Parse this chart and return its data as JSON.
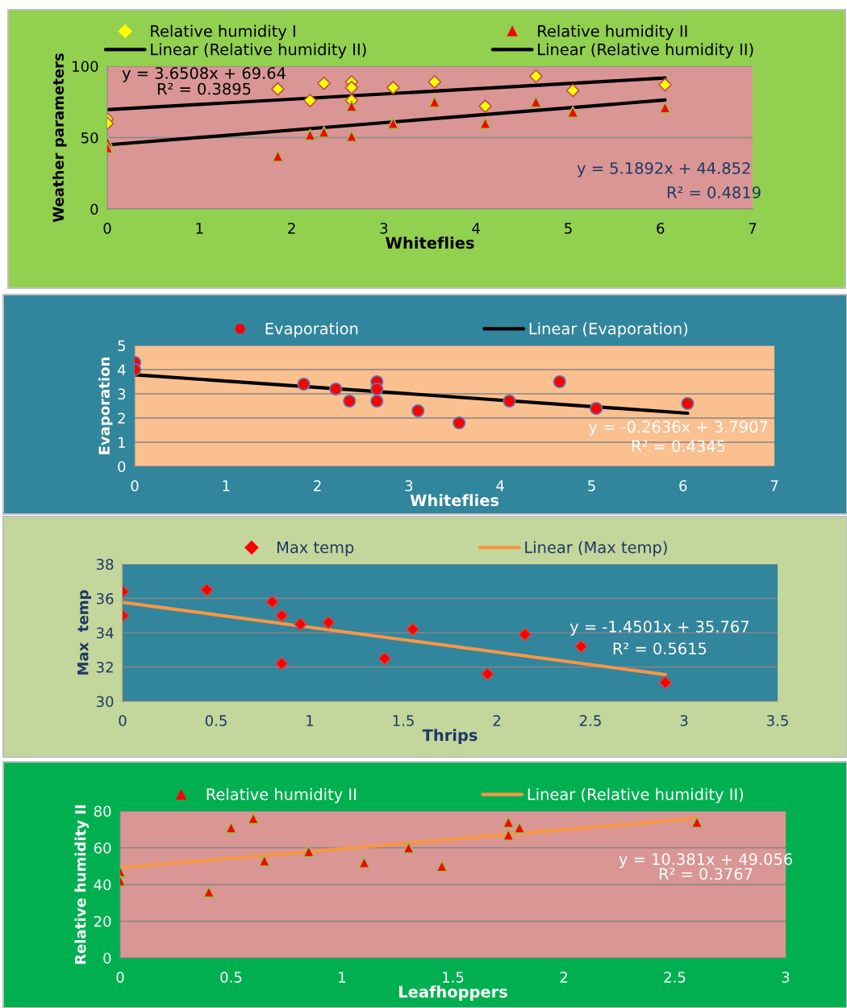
{
  "chart_data": [
    {
      "type": "scatter",
      "xlabel": "Whiteflies",
      "ylabel": "Weather parameters",
      "xlim": [
        0,
        7
      ],
      "xticks": [
        0,
        1,
        2,
        3,
        4,
        5,
        6,
        7
      ],
      "ylim": [
        0,
        100
      ],
      "yticks": [
        0,
        50,
        100
      ],
      "grid": "y",
      "legend": "top",
      "annotations": [
        "y = 3.6508x + 69.64",
        "R² = 0.3895",
        "y = 5.1892x + 44.852",
        "R² = 0.4819"
      ],
      "series": [
        {
          "name": "Relative humidity I",
          "marker": "diamond",
          "color": "#ffff00",
          "x": [
            0,
            0,
            1.85,
            2.2,
            2.35,
            2.65,
            2.65,
            2.65,
            3.1,
            3.55,
            4.1,
            4.65,
            5.05,
            6.05
          ],
          "values": [
            63,
            60,
            84,
            76,
            88,
            89,
            85,
            76,
            85,
            89,
            72,
            93,
            83,
            87
          ]
        },
        {
          "name": "Linear (Relative humidity II)",
          "type": "line",
          "marker": "none",
          "color": "#000000",
          "x": [
            0,
            6.05
          ],
          "values": [
            69.6,
            91.7
          ]
        },
        {
          "name": "Relative humidity II",
          "marker": "triangle",
          "color": "#ff0000",
          "x": [
            0,
            0,
            1.85,
            2.2,
            2.35,
            2.65,
            2.65,
            3.1,
            3.55,
            4.1,
            4.65,
            5.05,
            6.05
          ],
          "values": [
            47,
            43,
            37,
            52,
            54,
            72,
            51,
            60,
            75,
            60,
            75,
            68,
            71
          ]
        },
        {
          "name": "Linear (Relative humidity II)",
          "type": "line",
          "marker": "none",
          "color": "#000000",
          "x": [
            0,
            6.05
          ],
          "values": [
            44.9,
            76.3
          ]
        }
      ]
    },
    {
      "type": "scatter",
      "xlabel": "Whiteflies",
      "ylabel": "Evaporation",
      "xlim": [
        0,
        7
      ],
      "xticks": [
        0,
        1,
        2,
        3,
        4,
        5,
        6,
        7
      ],
      "ylim": [
        0,
        5
      ],
      "yticks": [
        0,
        1,
        2,
        3,
        4,
        5
      ],
      "grid": "y",
      "legend": "top",
      "annotations": [
        "y = -0.2636x + 3.7907",
        "R² = 0.4345"
      ],
      "series": [
        {
          "name": "Evaporation",
          "marker": "circle",
          "color": "#ff0000",
          "x": [
            0,
            0,
            1.85,
            2.2,
            2.35,
            2.65,
            2.65,
            2.65,
            3.1,
            3.55,
            4.1,
            4.65,
            5.05,
            6.05
          ],
          "values": [
            4.3,
            4.0,
            3.4,
            3.2,
            2.7,
            3.5,
            3.2,
            2.7,
            2.3,
            1.8,
            2.7,
            3.5,
            2.4,
            2.6
          ]
        },
        {
          "name": "Linear (Evaporation)",
          "type": "line",
          "marker": "none",
          "color": "#000000",
          "x": [
            0,
            6.05
          ],
          "values": [
            3.79,
            2.2
          ]
        }
      ]
    },
    {
      "type": "scatter",
      "xlabel": "Thrips",
      "ylabel": "Max  temp",
      "xlim": [
        0,
        3.5
      ],
      "xticks": [
        0,
        0.5,
        1,
        1.5,
        2,
        2.5,
        3,
        3.5
      ],
      "ylim": [
        30,
        38
      ],
      "yticks": [
        30,
        32,
        34,
        36,
        38
      ],
      "grid": "y",
      "legend": "top",
      "annotations": [
        "y = -1.4501x + 35.767",
        "R² = 0.5615"
      ],
      "series": [
        {
          "name": "Max temp",
          "marker": "diamond",
          "color": "#ff0000",
          "x": [
            0,
            0,
            0.45,
            0.8,
            0.85,
            0.85,
            0.95,
            1.1,
            1.4,
            1.55,
            1.95,
            2.15,
            2.45,
            2.9
          ],
          "values": [
            36.4,
            35,
            36.5,
            35.8,
            35,
            32.2,
            34.5,
            34.6,
            32.5,
            34.2,
            31.6,
            33.9,
            33.2,
            31.1
          ]
        },
        {
          "name": "Linear (Max temp)",
          "type": "line",
          "marker": "none",
          "color": "#f79646",
          "x": [
            0,
            2.9
          ],
          "values": [
            35.77,
            31.56
          ]
        }
      ]
    },
    {
      "type": "scatter",
      "xlabel": "Leafhoppers",
      "ylabel": "Relative humidity II",
      "xlim": [
        0,
        3
      ],
      "xticks": [
        0,
        0.5,
        1,
        1.5,
        2,
        2.5,
        3
      ],
      "ylim": [
        0,
        80
      ],
      "yticks": [
        0,
        20,
        40,
        60,
        80
      ],
      "grid": "y",
      "legend": "top",
      "annotations": [
        "y = 10.381x + 49.056",
        "R² = 0.3767"
      ],
      "series": [
        {
          "name": "Relative humidity II",
          "marker": "triangle",
          "color": "#ff0000",
          "x": [
            0,
            0,
            0.4,
            0.5,
            0.6,
            0.65,
            0.85,
            1.1,
            1.3,
            1.45,
            1.75,
            1.75,
            1.8,
            2.6
          ],
          "values": [
            47,
            42,
            36,
            71,
            76,
            53,
            58,
            52,
            60,
            50,
            74,
            67,
            71,
            74
          ]
        },
        {
          "name": "Linear (Relative humidity II)",
          "type": "line",
          "marker": "none",
          "color": "#f79646",
          "x": [
            0,
            2.6
          ],
          "values": [
            49.1,
            76.1
          ]
        }
      ]
    }
  ]
}
